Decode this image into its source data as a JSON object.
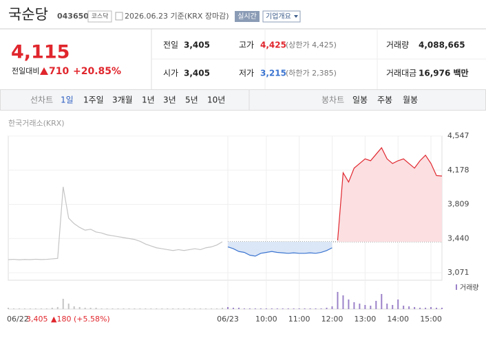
{
  "header": {
    "title": "국순당",
    "code": "043650",
    "market": "코스닥",
    "date": "2026.06.23 기준(KRX 장마감)",
    "realtime": "실시간",
    "company": "기업개요"
  },
  "quote": {
    "price": "4,115",
    "change_label": "전일대비",
    "change": "710",
    "change_pct": "+20.85%"
  },
  "stats": [
    {
      "label": "전일",
      "value": "3,405",
      "extra": ""
    },
    {
      "label": "고가",
      "value": "4,425",
      "extra": "(상한가 4,425)"
    },
    {
      "label": "거래량",
      "value": "4,088,665",
      "extra": ""
    },
    {
      "label": "시가",
      "value": "3,405",
      "extra": ""
    },
    {
      "label": "저가",
      "value": "3,215",
      "extra": "(하한가 2,385)"
    },
    {
      "label": "거래대금",
      "value": "16,976 백만",
      "extra": ""
    }
  ],
  "tabs": {
    "line_label": "선차트",
    "line_periods": [
      "1일",
      "1주일",
      "3개월",
      "1년",
      "3년",
      "5년",
      "10년"
    ],
    "candle_label": "봉차트",
    "candle_periods": [
      "일봉",
      "주봉",
      "월봉"
    ]
  },
  "source": "한국거래소(KRX)",
  "footer": {
    "prev_info": "3,405",
    "prev_change": "▲180 (+5.58%)"
  },
  "chart_data": [
    {
      "type": "line",
      "categories": [
        "06/22",
        null,
        null,
        null,
        null,
        null,
        null,
        null,
        null,
        null,
        null,
        null,
        null,
        null,
        null,
        null,
        null,
        null,
        null,
        null,
        null,
        null,
        null,
        null,
        null,
        null,
        null,
        null,
        null,
        null,
        null,
        null,
        null,
        null,
        null,
        null,
        null,
        null,
        null,
        null,
        "06/23",
        null,
        null,
        null,
        null,
        null,
        null,
        "10:00",
        null,
        null,
        null,
        null,
        null,
        "11:00",
        null,
        null,
        null,
        null,
        null,
        "12:00",
        null,
        null,
        null,
        null,
        null,
        "13:00",
        null,
        null,
        null,
        null,
        null,
        "14:00",
        null,
        null,
        null,
        null,
        null,
        "15:00",
        null,
        null
      ],
      "series": [
        {
          "color": "#c4c4c4",
          "values": [
            3212,
            3215,
            3210,
            3214,
            3212,
            3216,
            3213,
            3215,
            3220,
            3225,
            3998,
            3660,
            3600,
            3560,
            3530,
            3540,
            3510,
            3500,
            3480,
            3470,
            3460,
            3450,
            3440,
            3430,
            3410,
            3380,
            3360,
            3340,
            3330,
            3320,
            3310,
            3320,
            3310,
            3320,
            3330,
            3320,
            3340,
            3350,
            3370,
            3405,
            null,
            null,
            null,
            null,
            null,
            null,
            null,
            null,
            null,
            null,
            null,
            null,
            null,
            null,
            null,
            null,
            null,
            null,
            null,
            null,
            null,
            null,
            null,
            null,
            null,
            null,
            null,
            null,
            null,
            null,
            null,
            null,
            null,
            null,
            null,
            null,
            null,
            null,
            null,
            null
          ]
        },
        {
          "color": "#3a74d0",
          "fill": "#dbe6f6",
          "values": [
            null,
            null,
            null,
            null,
            null,
            null,
            null,
            null,
            null,
            null,
            null,
            null,
            null,
            null,
            null,
            null,
            null,
            null,
            null,
            null,
            null,
            null,
            null,
            null,
            null,
            null,
            null,
            null,
            null,
            null,
            null,
            null,
            null,
            null,
            null,
            null,
            null,
            null,
            null,
            null,
            3350,
            3330,
            3300,
            3290,
            3260,
            3250,
            3280,
            3290,
            3300,
            3290,
            3285,
            3280,
            3285,
            3280,
            3280,
            3285,
            3280,
            3290,
            3310,
            3340,
            null,
            null,
            null,
            null,
            null,
            null,
            null,
            null,
            null,
            null,
            null,
            null,
            null,
            null,
            null,
            null,
            null,
            null,
            null,
            null
          ]
        },
        {
          "color": "#e0262d",
          "fill": "#fbdfe1",
          "values": [
            null,
            null,
            null,
            null,
            null,
            null,
            null,
            null,
            null,
            null,
            null,
            null,
            null,
            null,
            null,
            null,
            null,
            null,
            null,
            null,
            null,
            null,
            null,
            null,
            null,
            null,
            null,
            null,
            null,
            null,
            null,
            null,
            null,
            null,
            null,
            null,
            null,
            null,
            null,
            null,
            null,
            null,
            null,
            null,
            null,
            null,
            null,
            null,
            null,
            null,
            null,
            null,
            null,
            null,
            null,
            null,
            null,
            null,
            null,
            null,
            3420,
            4150,
            4050,
            4200,
            4250,
            4300,
            4280,
            4350,
            4420,
            4300,
            4250,
            4280,
            4300,
            4250,
            4200,
            4280,
            4340,
            4250,
            4120,
            4115
          ]
        }
      ],
      "reference_line": 3405,
      "ylim": [
        3071,
        4547
      ],
      "yticks": [
        {
          "value": 3071,
          "label": "3,071"
        },
        {
          "value": 3440,
          "label": "3,440"
        },
        {
          "value": 3809,
          "label": "3,809"
        },
        {
          "value": 4178,
          "label": "4,178"
        },
        {
          "value": 4547,
          "label": "4,547"
        }
      ]
    },
    {
      "type": "bar",
      "legend": "거래량",
      "ylim": [
        0,
        40
      ],
      "series": [
        {
          "color": "#c4c4c4",
          "values": [
            2,
            1,
            1,
            1,
            1,
            1,
            1,
            1,
            2,
            3,
            15,
            8,
            4,
            3,
            2,
            2,
            2,
            1,
            1,
            1,
            1,
            1,
            1,
            1,
            1,
            1,
            1,
            1,
            1,
            1,
            1,
            1,
            1,
            1,
            1,
            1,
            1,
            1,
            1,
            2,
            null,
            null,
            null,
            null,
            null,
            null,
            null,
            null,
            null,
            null,
            null,
            null,
            null,
            null,
            null,
            null,
            null,
            null,
            null,
            null,
            null,
            null,
            null,
            null,
            null,
            null,
            null,
            null,
            null,
            null,
            null,
            null,
            null,
            null,
            null,
            null,
            null,
            null,
            null,
            null
          ]
        },
        {
          "color": "#9b82c8",
          "values": [
            null,
            null,
            null,
            null,
            null,
            null,
            null,
            null,
            null,
            null,
            null,
            null,
            null,
            null,
            null,
            null,
            null,
            null,
            null,
            null,
            null,
            null,
            null,
            null,
            null,
            null,
            null,
            null,
            null,
            null,
            null,
            null,
            null,
            null,
            null,
            null,
            null,
            null,
            null,
            null,
            3,
            2,
            2,
            1,
            1,
            1,
            1,
            1,
            1,
            1,
            1,
            1,
            1,
            1,
            1,
            1,
            1,
            1,
            2,
            4,
            25,
            20,
            14,
            10,
            8,
            6,
            5,
            12,
            22,
            8,
            6,
            14,
            5,
            4,
            3,
            2,
            2,
            3,
            2,
            2
          ]
        }
      ]
    }
  ]
}
